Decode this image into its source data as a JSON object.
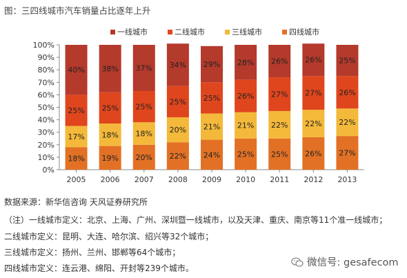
{
  "figure_title": "图：三四线城市汽车销量占比逐年上升",
  "chart_data": {
    "type": "bar",
    "stacked": true,
    "percent": true,
    "categories": [
      "2005",
      "2006",
      "2007",
      "2008",
      "2009",
      "2010",
      "2011",
      "2012",
      "2013"
    ],
    "series": [
      {
        "name": "四线城市",
        "color": "#E27125",
        "values": [
          18,
          19,
          20,
          22,
          24,
          25,
          25,
          26,
          27
        ]
      },
      {
        "name": "三线城市",
        "color": "#F4B93A",
        "values": [
          17,
          18,
          18,
          20,
          21,
          21,
          22,
          22,
          22
        ]
      },
      {
        "name": "二线城市",
        "color": "#E0461D",
        "values": [
          25,
          25,
          25,
          25,
          25,
          26,
          27,
          27,
          26
        ]
      },
      {
        "name": "一线城市",
        "color": "#B43A2C",
        "values": [
          40,
          38,
          37,
          34,
          29,
          28,
          26,
          26,
          25
        ]
      }
    ],
    "legend_order": [
      "一线城市",
      "二线城市",
      "三线城市",
      "四线城市"
    ],
    "ylim": [
      0,
      100
    ],
    "yticks": [
      "0%",
      "10%",
      "20%",
      "30%",
      "40%",
      "50%",
      "60%",
      "70%",
      "80%",
      "90%",
      "100%"
    ],
    "legend_position": "top",
    "grid": false
  },
  "notes": [
    "数据来源：新华信咨询 天风证券研究所",
    "（注）一线城市定义：北京、上海、广州、深圳暨一线城市，以及天津、重庆、南京等11个准一线城市；",
    "二线城市定义：昆明、大连、哈尔滨、绍兴等32个城市；",
    "三线城市定义：扬州、兰州、邯郸等64个城市；",
    "四线城市定义：连云港、绵阳、开封等239个城市。"
  ],
  "watermark": {
    "icon": "wechat-icon",
    "text": "微信号: gesafecom"
  }
}
